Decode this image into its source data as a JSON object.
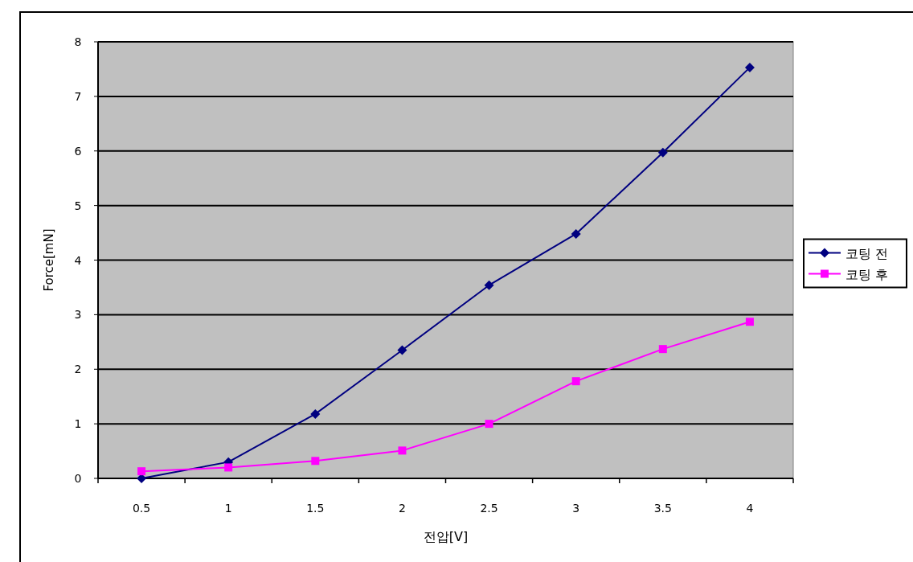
{
  "chart_data": {
    "type": "line",
    "xlabel": "전압[V]",
    "ylabel": "Force[mN]",
    "categories": [
      "0.5",
      "1",
      "1.5",
      "2",
      "2.5",
      "3",
      "3.5",
      "4"
    ],
    "series": [
      {
        "name": "코팅 전",
        "color": "#000080",
        "marker": "diamond",
        "values": [
          0.0,
          0.3,
          1.18,
          2.35,
          3.54,
          4.48,
          5.97,
          7.53
        ]
      },
      {
        "name": "코팅 후",
        "color": "#ff00ff",
        "marker": "square",
        "values": [
          0.13,
          0.2,
          0.32,
          0.51,
          1.0,
          1.78,
          2.37,
          2.87
        ]
      }
    ],
    "ylim": [
      0,
      8
    ],
    "yticks": [
      0,
      1,
      2,
      3,
      4,
      5,
      6,
      7,
      8
    ],
    "grid": "y",
    "legend": "right"
  }
}
